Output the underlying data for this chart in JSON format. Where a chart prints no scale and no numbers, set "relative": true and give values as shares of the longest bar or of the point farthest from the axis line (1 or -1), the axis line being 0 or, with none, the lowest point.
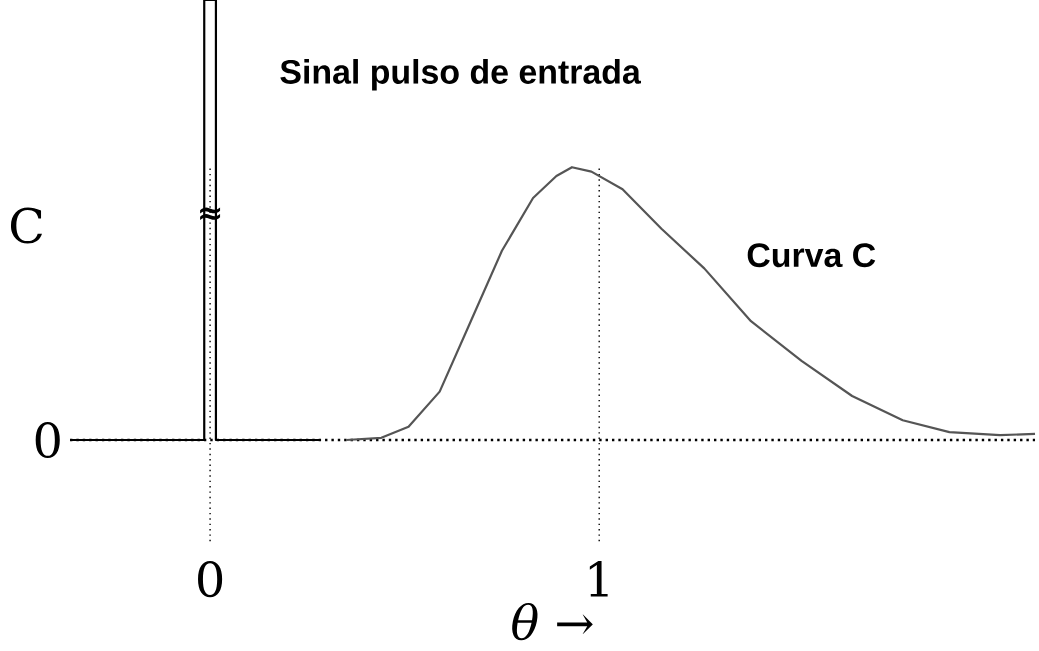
{
  "chart_data": {
    "type": "line",
    "relative": true,
    "xlabel": "θ →",
    "ylabel": "C",
    "xlim": [
      -0.36,
      2.12
    ],
    "xticks": [
      0,
      1
    ],
    "legend": false,
    "grid": false,
    "marker": "none",
    "series": [
      {
        "name": "Sinal pulso de entrada",
        "color": "#000000",
        "line_style": "solid",
        "x": [
          -0.36,
          -0.015,
          -0.015,
          0.015,
          0.015,
          0.28
        ],
        "values": [
          0,
          0,
          1,
          1,
          0,
          0
        ]
      },
      {
        "name": "Curva C",
        "color": "#555555",
        "line_style": "solid",
        "x": [
          0.35,
          0.44,
          0.51,
          0.59,
          0.67,
          0.75,
          0.83,
          0.89,
          0.93,
          0.98,
          1.06,
          1.16,
          1.27,
          1.39,
          1.52,
          1.65,
          1.78,
          1.9,
          2.03,
          2.12
        ],
        "values": [
          0,
          0.005,
          0.03,
          0.11,
          0.27,
          0.43,
          0.55,
          0.6,
          0.62,
          0.61,
          0.57,
          0.48,
          0.39,
          0.27,
          0.18,
          0.1,
          0.045,
          0.018,
          0.011,
          0.014
        ]
      }
    ],
    "ref_lines": [
      {
        "axis": "x",
        "value": 0,
        "color": "#000000",
        "line_style": "dotted"
      },
      {
        "axis": "x",
        "value": 1,
        "color": "#000000",
        "line_style": "dotted"
      },
      {
        "axis": "y",
        "value": 0,
        "color": "#000000",
        "line_style": "dotted"
      }
    ],
    "annotations": [
      {
        "text": "≈",
        "x": 0,
        "y": 0.51
      },
      "0"
    ]
  }
}
